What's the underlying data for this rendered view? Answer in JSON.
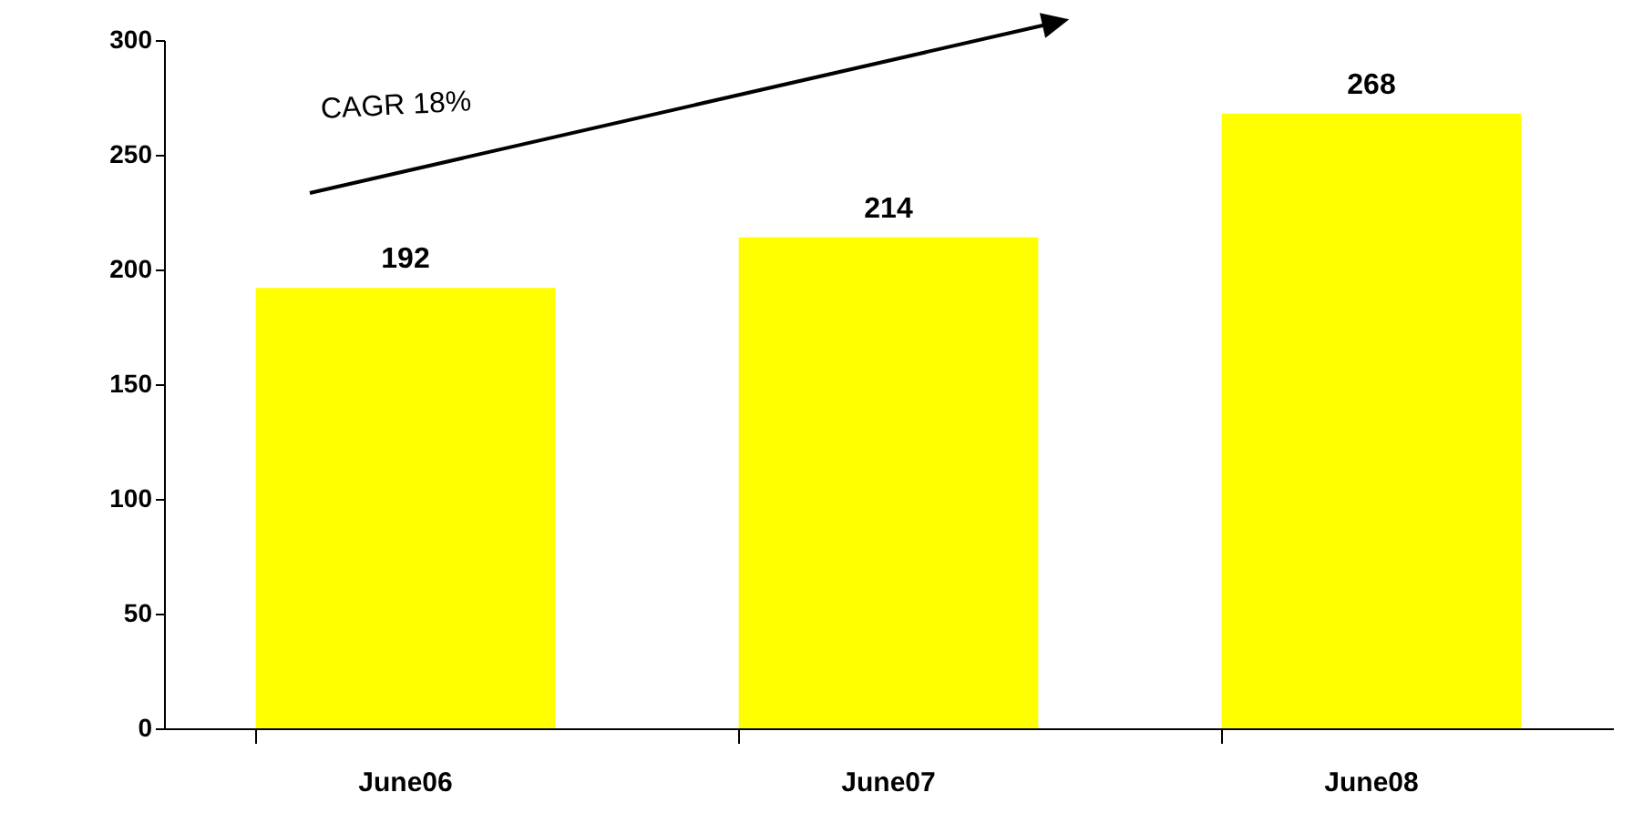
{
  "chart_data": {
    "type": "bar",
    "categories": [
      "June06",
      "June07",
      "June08"
    ],
    "values": [
      192,
      214,
      268
    ],
    "color": "#ffff00",
    "ylim": [
      0,
      300
    ],
    "yticks": [
      0,
      50,
      100,
      150,
      200,
      250,
      300
    ],
    "grid": false,
    "data_labels": true,
    "annotations": [
      "CAGR 18%"
    ]
  }
}
